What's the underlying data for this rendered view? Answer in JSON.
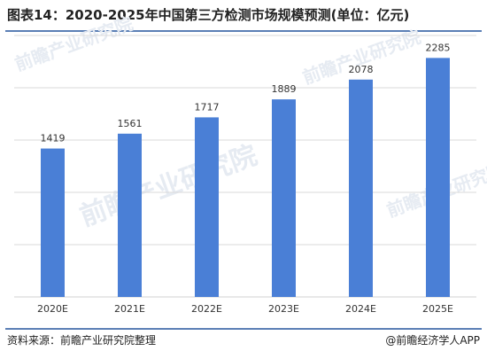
{
  "title": "图表14：2020-2025年中国第三方检测市场规模预测(单位：亿元)",
  "footer": {
    "source": "资料来源：前瞻产业研究院整理",
    "credit": "@前瞻经济学人APP"
  },
  "watermark": {
    "text": "前瞻产业研究院"
  },
  "colors": {
    "bar": "#4a7fd6",
    "rule": "#5b7fb5",
    "grid": "#d9d9d9"
  },
  "chart_data": {
    "type": "bar",
    "categories": [
      "2020E",
      "2021E",
      "2022E",
      "2023E",
      "2024E",
      "2025E"
    ],
    "values": [
      1419,
      1561,
      1717,
      1889,
      2078,
      2285
    ],
    "ylim": [
      0,
      2500
    ],
    "grid": true,
    "legend": "none"
  }
}
